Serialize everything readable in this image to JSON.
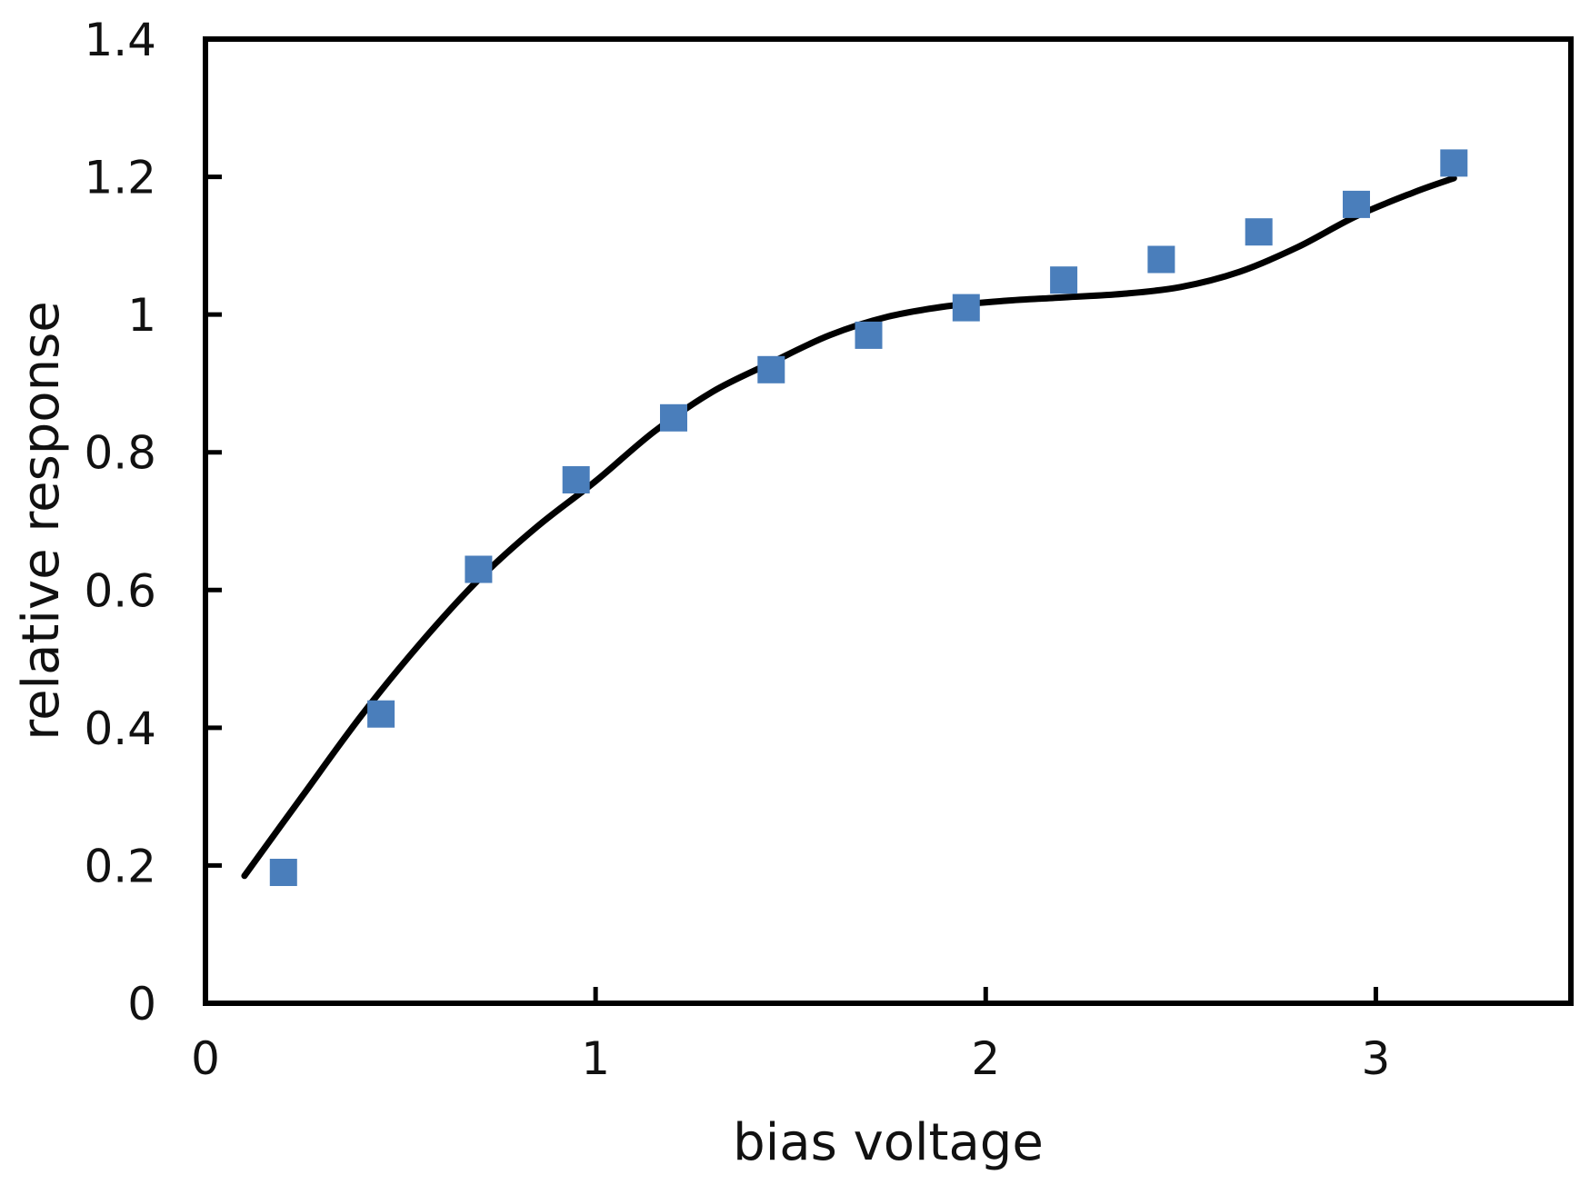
{
  "chart_data": {
    "type": "scatter",
    "title": "",
    "xlabel": "bias voltage",
    "ylabel": "relative response",
    "xlim": [
      0,
      3.5
    ],
    "ylim": [
      0,
      1.4
    ],
    "x_ticks": [
      0,
      1,
      2,
      3
    ],
    "x_tick_labels": [
      "0",
      "1",
      "2",
      "3"
    ],
    "y_ticks": [
      0,
      0.2,
      0.4,
      0.6,
      0.8,
      1.0,
      1.2,
      1.4
    ],
    "y_tick_labels": [
      "0",
      "0.2",
      "0.4",
      "0.6",
      "0.8",
      "1",
      "1.2",
      "1.4"
    ],
    "grid": false,
    "legend": "none",
    "series": [
      {
        "type": "scatter",
        "marker": "square",
        "color": "#4A7EBB",
        "x": [
          0.2,
          0.45,
          0.7,
          0.95,
          1.2,
          1.45,
          1.7,
          1.95,
          2.2,
          2.45,
          2.7,
          2.95,
          3.2
        ],
        "y": [
          0.19,
          0.42,
          0.63,
          0.76,
          0.85,
          0.92,
          0.97,
          1.01,
          1.05,
          1.08,
          1.12,
          1.16,
          1.22
        ]
      },
      {
        "type": "line",
        "color": "#000000",
        "x": [
          0.1,
          0.25,
          0.4,
          0.55,
          0.7,
          0.85,
          1.0,
          1.15,
          1.3,
          1.45,
          1.6,
          1.75,
          1.9,
          2.05,
          2.2,
          2.35,
          2.5,
          2.65,
          2.8,
          2.95,
          3.1,
          3.2
        ],
        "y": [
          0.185,
          0.302,
          0.418,
          0.522,
          0.615,
          0.692,
          0.758,
          0.83,
          0.888,
          0.93,
          0.97,
          0.997,
          1.012,
          1.02,
          1.025,
          1.03,
          1.04,
          1.062,
          1.098,
          1.143,
          1.178,
          1.198
        ]
      }
    ]
  }
}
